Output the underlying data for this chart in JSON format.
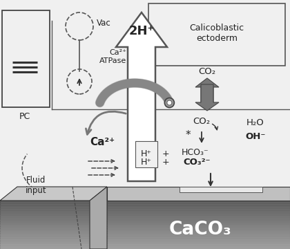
{
  "bg_color": "#f0f0f0",
  "calicoblastic_label": "Calicoblastic\nectoderm",
  "vac_label": "Vac",
  "pc_label": "PC",
  "ca2plus_atpase_label": "Ca²⁺\nATPase",
  "two_hplus_label": "2H⁺",
  "ca2plus_label": "Ca²⁺",
  "co2_label_upper": "CO₂",
  "co2_label_lower": "CO₂",
  "h2o_label": "H₂O",
  "oh_label": "OH⁻",
  "h_plus_1": "H⁺",
  "h_plus_2": "H⁺",
  "hco3_label": "HCO₃⁻",
  "co3_label": "CO₃²⁻",
  "plus1": "+",
  "plus2": "+",
  "caco3_label": "CaCO₃",
  "fluid_input": "Fluid\ninput",
  "star": "*"
}
